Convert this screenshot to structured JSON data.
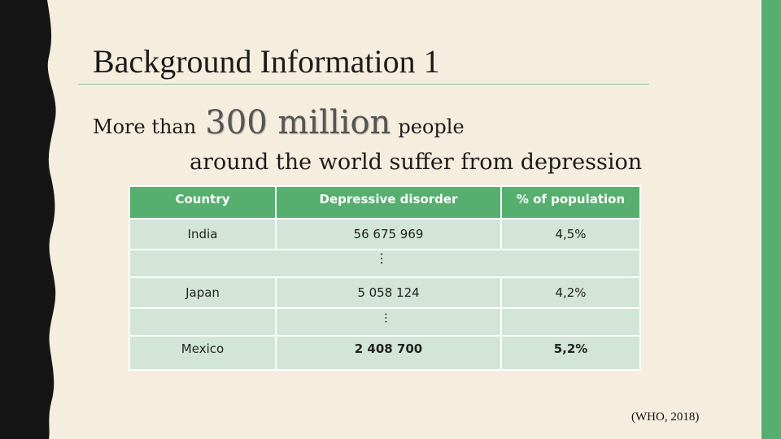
{
  "slide": {
    "title": "Background Information 1",
    "line1_prefix": "More than",
    "line1_emphasis": "300 million",
    "line1_suffix": "people",
    "line2": "around the world suffer from depression",
    "source": "(WHO, 2018)"
  },
  "table": {
    "headers": [
      "Country",
      "Depressive disorder",
      "% of population"
    ],
    "rows": [
      {
        "country": "India",
        "count": "56 675 969",
        "percent": "4,5%"
      },
      {
        "ellipsis": "…"
      },
      {
        "country": "Japan",
        "count": "5 058 124",
        "percent": "4,2%"
      },
      {
        "ellipsis": "…"
      },
      {
        "country": "Mexico",
        "count": "2 408 700",
        "percent": "5,2%"
      }
    ]
  },
  "colors": {
    "background": "#f5eedf",
    "accent_green": "#56ae6f",
    "table_cell": "#d2e5d8",
    "left_border": "#151515"
  }
}
